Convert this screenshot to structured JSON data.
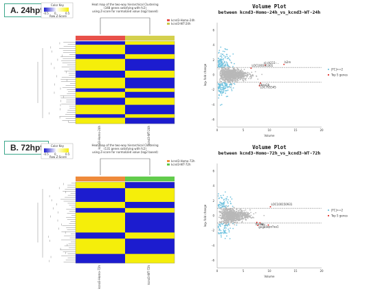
{
  "panels": [
    {
      "label": "A. 24hpf",
      "heatmap": {
        "title_lines": [
          "Heat map of the two-way hierarchical Clustering",
          "(348 genes satisfying with fc2)",
          "using Z-score for normalized value (log2 based)"
        ],
        "color_key_title": "Color Key",
        "color_key_ticks": [
          "-0.5",
          "0",
          "0.5"
        ],
        "color_key_sub": "Row Z-Score",
        "legend": [
          {
            "label": "kcnd3-Homo-24h",
            "color": "#e8514a"
          },
          {
            "label": "kcnd3-WT-24h",
            "color": "#c8c84a"
          }
        ],
        "columns": [
          {
            "label": "kcnd3-Homo-24h",
            "color": "#e8514a"
          },
          {
            "label": "kcnd3-WT-24h",
            "color": "#d4d04e"
          }
        ],
        "left_pattern": [
          "b",
          "y",
          "b",
          "y",
          "y",
          "b",
          "y",
          "b",
          "y",
          "b",
          "y",
          "b",
          "y"
        ],
        "row_weights": [
          3,
          8,
          4,
          7,
          3,
          6,
          9,
          3,
          5,
          6,
          8,
          3,
          5
        ]
      },
      "volcano": {
        "title": "Volume Plot",
        "subtitle": "between kcnd3-Homo-24h_vs_kcnd3-WT-24h",
        "xlabel": "Volume",
        "ylabel": "log₂ fold change",
        "yticks": [
          "6",
          "4",
          "2",
          "0",
          "-2",
          "-4",
          "-6"
        ],
        "xticks": [
          "0",
          "5",
          "10",
          "15",
          "20"
        ],
        "annotations": [
          "LOC100331301",
          "si:ch211-...",
          "b2m",
          "hbaa1b",
          "LOC795545"
        ],
        "legend": [
          "|FC|>=2",
          "Top 5 genes"
        ]
      }
    },
    {
      "label": "B. 72hpf",
      "heatmap": {
        "title_lines": [
          "Heat map of the two-way hierarchical Clustering",
          "(131 genes satisfying with fc2)",
          "using Z-score for normalized value (log2 based)"
        ],
        "color_key_title": "Color Key",
        "color_key_ticks": [
          "-0.5",
          "0",
          "0.5"
        ],
        "color_key_sub": "Row Z-Score",
        "legend": [
          {
            "label": "kcnd3-Homo-72h",
            "color": "#f0923c"
          },
          {
            "label": "kcnd3-WT-72h",
            "color": "#5cc84a"
          }
        ],
        "columns": [
          {
            "label": "kcnd3-Homo-72h",
            "color": "#ef8a3a"
          },
          {
            "label": "kcnd3-WT-72h",
            "color": "#62cc4c"
          }
        ],
        "left_pattern": [
          "y",
          "b",
          "y",
          "b",
          "y",
          "b",
          "y",
          "b"
        ],
        "row_weights": [
          4,
          9,
          4,
          3,
          13,
          4,
          10,
          6
        ]
      },
      "volcano": {
        "title": "Volume Plot",
        "subtitle": "between kcnd3-Homo-72h_vs_kcnd3-WT-72h",
        "xlabel": "Volume",
        "ylabel": "log₂ fold change",
        "yticks": [
          "6",
          "4",
          "2",
          "0",
          "-2",
          "-4",
          "-6"
        ],
        "xticks": [
          "0",
          "5",
          "10",
          "15",
          "20"
        ],
        "annotations": [
          "LOC100150931",
          "thsdb",
          "mb",
          "epo?aa1",
          "gngb5"
        ],
        "legend": [
          "|FC|>=2",
          "Top 5 genes"
        ]
      }
    }
  ],
  "colors": {
    "high": "#f5ee0a",
    "low": "#1c1ccf",
    "mid": "#ffffff",
    "gray_points": "#b8b8b8",
    "sig_points": "#74c4e0",
    "top_points": "#e0302a"
  }
}
